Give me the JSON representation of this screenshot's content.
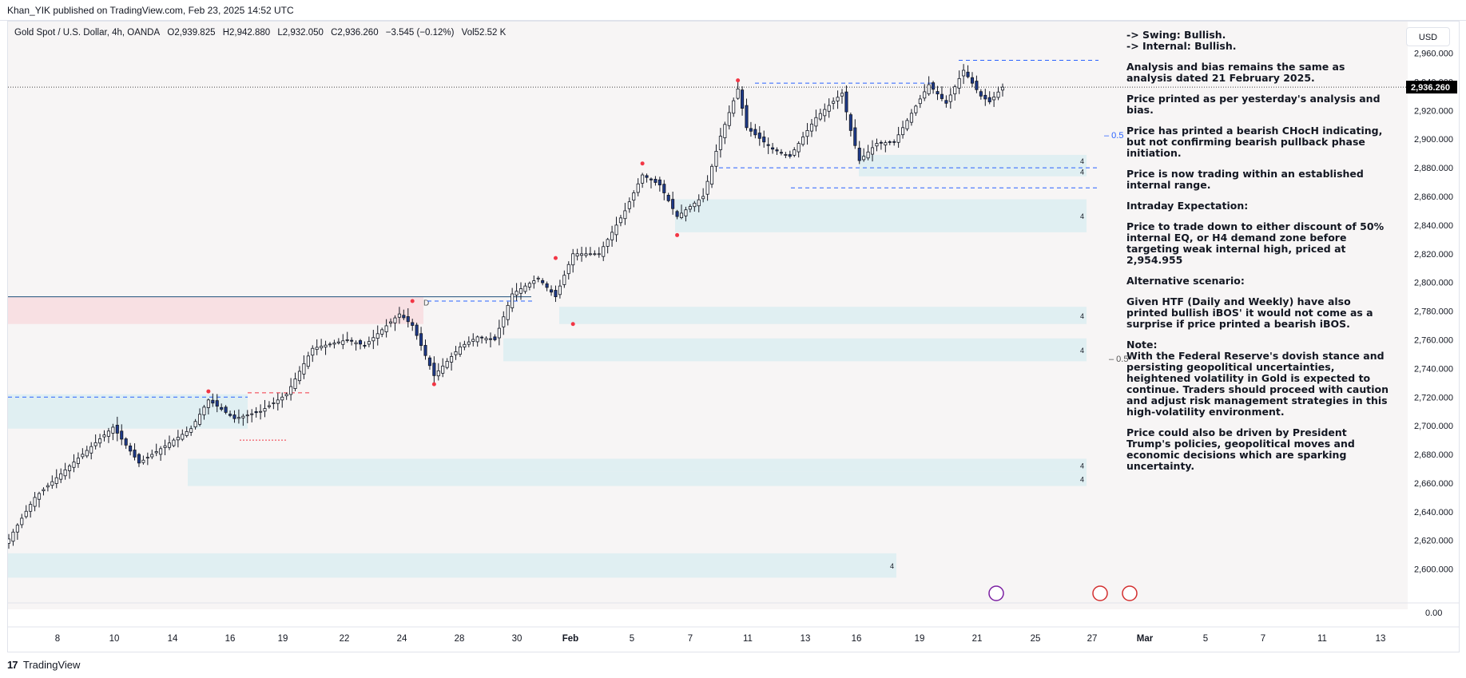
{
  "header": {
    "published_line": "Khan_YIK published on TradingView.com, Feb 23, 2025 14:52 UTC"
  },
  "legend": {
    "symbol": "Gold Spot / U.S. Dollar, 4h, OANDA",
    "open": "O2,939.825",
    "high": "H2,942.880",
    "low": "L2,932.050",
    "close": "C2,936.260",
    "change": "−3.545 (−0.12%)",
    "volume": "Vol52.52 K"
  },
  "currency": "USD",
  "notes": [
    "-> Swing:  Bullish.",
    "-> Internal:  Bullish.",
    "Analysis and bias remains the same as analysis dated 21 February 2025.",
    "Price printed as per yesterday's analysis and bias.",
    "Price has printed a bearish CHocH indicating, but not confirming bearish pullback phase initiation.",
    "Price is now trading within an established internal range.",
    "Intraday Expectation:",
    "Price to trade down to either discount of 50% internal EQ, or H4 demand zone before targeting weak internal high, priced at 2,954.955",
    "Alternative scenario:",
    "Given HTF (Daily and Weekly) have also printed bullish iBOS' it would not come as a surprise if price printed a bearish iBOS.",
    "Note:",
    "With the Federal Reserve's dovish stance and persisting geopolitical uncertainties, heightened volatility in Gold is expected to continue. Traders should proceed with caution and adjust risk management strategies in this high-volatility environment.",
    "Price could also be driven by President Trump's policies, geopolitical moves and economic decisions which are sparking uncertainty."
  ],
  "footer": {
    "brand": "TradingView",
    "logo_mark": "17"
  },
  "chart_data": {
    "type": "candlestick",
    "timeframe": "4h",
    "y_axis": {
      "ticks": [
        2600,
        2620,
        2640,
        2660,
        2680,
        2700,
        2720,
        2740,
        2760,
        2780,
        2800,
        2820,
        2840,
        2860,
        2880,
        2900,
        2920,
        2940,
        2960
      ],
      "tick_labels": [
        "2,600.000",
        "2,620.000",
        "2,640.000",
        "2,660.000",
        "2,680.000",
        "2,700.000",
        "2,720.000",
        "2,740.000",
        "2,760.000",
        "2,780.000",
        "2,800.000",
        "2,820.000",
        "2,840.000",
        "2,860.000",
        "2,880.000",
        "2,900.000",
        "2,920.000",
        "2,940.000",
        "2,960.000"
      ],
      "range": [
        2592,
        2982
      ],
      "volume_pane_label": "0.00"
    },
    "x_axis": {
      "labels": [
        "8",
        "10",
        "14",
        "16",
        "19",
        "22",
        "24",
        "28",
        "30",
        "Feb",
        "5",
        "7",
        "11",
        "13",
        "16",
        "19",
        "21",
        "25",
        "27",
        "Mar",
        "5",
        "7",
        "11",
        "13"
      ]
    },
    "last_price": 2936.26,
    "last_price_label": "2,936.260",
    "anchors": [
      {
        "t": 0,
        "price": 2621
      },
      {
        "t": 6,
        "price": 2650
      },
      {
        "t": 14,
        "price": 2672
      },
      {
        "t": 24,
        "price": 2699
      },
      {
        "t": 30,
        "price": 2674
      },
      {
        "t": 42,
        "price": 2698
      },
      {
        "t": 46,
        "price": 2718
      },
      {
        "t": 52,
        "price": 2705
      },
      {
        "t": 58,
        "price": 2710
      },
      {
        "t": 64,
        "price": 2722
      },
      {
        "t": 70,
        "price": 2754
      },
      {
        "t": 78,
        "price": 2760
      },
      {
        "t": 82,
        "price": 2756
      },
      {
        "t": 90,
        "price": 2778
      },
      {
        "t": 93,
        "price": 2770
      },
      {
        "t": 98,
        "price": 2735
      },
      {
        "t": 104,
        "price": 2755
      },
      {
        "t": 108,
        "price": 2762
      },
      {
        "t": 112,
        "price": 2760
      },
      {
        "t": 116,
        "price": 2792
      },
      {
        "t": 122,
        "price": 2803
      },
      {
        "t": 126,
        "price": 2790
      },
      {
        "t": 130,
        "price": 2820
      },
      {
        "t": 136,
        "price": 2820
      },
      {
        "t": 142,
        "price": 2850
      },
      {
        "t": 146,
        "price": 2875
      },
      {
        "t": 150,
        "price": 2868
      },
      {
        "t": 154,
        "price": 2846
      },
      {
        "t": 160,
        "price": 2860
      },
      {
        "t": 164,
        "price": 2902
      },
      {
        "t": 168,
        "price": 2935
      },
      {
        "t": 170,
        "price": 2908
      },
      {
        "t": 176,
        "price": 2893
      },
      {
        "t": 180,
        "price": 2888
      },
      {
        "t": 186,
        "price": 2915
      },
      {
        "t": 192,
        "price": 2932
      },
      {
        "t": 194,
        "price": 2906
      },
      {
        "t": 196,
        "price": 2885
      },
      {
        "t": 200,
        "price": 2897
      },
      {
        "t": 204,
        "price": 2898
      },
      {
        "t": 208,
        "price": 2918
      },
      {
        "t": 212,
        "price": 2938
      },
      {
        "t": 216,
        "price": 2925
      },
      {
        "t": 220,
        "price": 2948
      },
      {
        "t": 224,
        "price": 2930
      },
      {
        "t": 226,
        "price": 2926
      },
      {
        "t": 229,
        "price": 2936.26
      }
    ],
    "x_mapping": {
      "t_start": 0,
      "t_end": 229,
      "label_date_start": "Jan 8",
      "note": ""
    },
    "zones": [
      {
        "price_low": 2881,
        "price_high": 2889,
        "label": "4"
      },
      {
        "price_low": 2874,
        "price_high": 2881,
        "label": "4"
      },
      {
        "price_low": 2835,
        "price_high": 2858,
        "label": "4"
      },
      {
        "price_low": 2771,
        "price_high": 2783,
        "label": "4"
      },
      {
        "price_low": 2745,
        "price_high": 2761,
        "label": "4"
      },
      {
        "price_low": 2668,
        "price_high": 2677,
        "label": "4"
      },
      {
        "price_low": 2658,
        "price_high": 2668,
        "label": "4"
      },
      {
        "price_low": 2594,
        "price_high": 2611,
        "label": "4"
      },
      {
        "price_low": 2698,
        "price_high": 2722,
        "label": ""
      }
    ],
    "supply_zone": {
      "price_low": 2771,
      "price_high": 2790
    },
    "levels": [
      {
        "price": 2954.955,
        "style": "dashed",
        "color": "#2962ff"
      },
      {
        "price": 2939,
        "style": "dashed",
        "color": "#2962ff"
      },
      {
        "price": 2866,
        "style": "dashed",
        "color": "#2962ff"
      },
      {
        "price": 2880,
        "style": "dashed",
        "color": "#2962ff"
      },
      {
        "price": 2787,
        "style": "dashed",
        "color": "#2962ff"
      },
      {
        "price": 2720,
        "style": "dashed",
        "color": "#2962ff"
      },
      {
        "price": 2723,
        "style": "dashed",
        "color": "#f23645"
      },
      {
        "price": 2690,
        "style": "dotted",
        "color": "#f23645"
      },
      {
        "price": 2790,
        "style": "solid",
        "color": "#1e4f7a"
      }
    ],
    "eq_labels": [
      {
        "text": "0.5",
        "price": 2903
      },
      {
        "text": "0.5",
        "price": 2747
      }
    ],
    "swing_dots": [
      {
        "t": 168,
        "price": 2941
      },
      {
        "t": 154,
        "price": 2833
      },
      {
        "t": 146,
        "price": 2883
      },
      {
        "t": 126,
        "price": 2817
      },
      {
        "t": 130,
        "price": 2771
      },
      {
        "t": 93,
        "price": 2787
      },
      {
        "t": 98,
        "price": 2729
      },
      {
        "t": 46,
        "price": 2724
      }
    ],
    "zone_letter": "D",
    "colors": {
      "bull_body": "#ffffff",
      "bear_body": "#1e3a8a",
      "wick": "#131722",
      "zone": "#e0eff2",
      "supply": "#f8e0e3",
      "level": "#2962ff",
      "swing_dot": "#f23645"
    }
  }
}
